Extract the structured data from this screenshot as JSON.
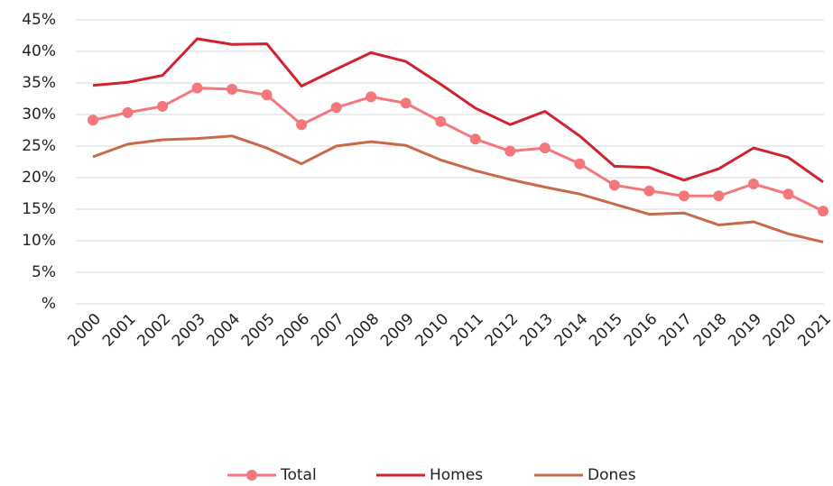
{
  "chart_data": {
    "type": "line",
    "categories": [
      "2000",
      "2001",
      "2002",
      "2003",
      "2004",
      "2005",
      "2006",
      "2007",
      "2008",
      "2009",
      "2010",
      "2011",
      "2012",
      "2013",
      "2014",
      "2015",
      "2016",
      "2017",
      "2018",
      "2019",
      "2020",
      "2021"
    ],
    "series": [
      {
        "name": "Total",
        "color": "#f4777c",
        "marker": "circle",
        "values": [
          29.1,
          30.3,
          31.3,
          34.2,
          34.0,
          33.1,
          28.4,
          31.1,
          32.8,
          31.8,
          28.9,
          26.1,
          24.2,
          24.7,
          22.2,
          18.8,
          17.9,
          17.1,
          17.1,
          19.0,
          17.4,
          14.7
        ]
      },
      {
        "name": "Homes",
        "color": "#d0222f",
        "values": [
          34.6,
          35.1,
          36.2,
          42.0,
          41.1,
          41.2,
          34.5,
          37.2,
          39.8,
          38.4,
          34.8,
          31.0,
          28.4,
          30.5,
          26.6,
          21.8,
          21.6,
          19.6,
          21.4,
          24.7,
          23.2,
          19.3
        ]
      },
      {
        "name": "Dones",
        "color": "#c8694a",
        "values": [
          23.3,
          25.3,
          26.0,
          26.2,
          26.6,
          24.7,
          22.2,
          25.0,
          25.7,
          25.1,
          22.8,
          21.1,
          19.7,
          18.5,
          17.4,
          15.8,
          14.2,
          14.4,
          12.5,
          13.0,
          11.1,
          9.8
        ]
      }
    ],
    "ylim": [
      0,
      45
    ],
    "yticks": [
      {
        "value": 0,
        "label": "%"
      },
      {
        "value": 5,
        "label": "5%"
      },
      {
        "value": 10,
        "label": "10%"
      },
      {
        "value": 15,
        "label": "15%"
      },
      {
        "value": 20,
        "label": "20%"
      },
      {
        "value": 25,
        "label": "25%"
      },
      {
        "value": 30,
        "label": "30%"
      },
      {
        "value": 35,
        "label": "35%"
      },
      {
        "value": 40,
        "label": "40%"
      },
      {
        "value": 45,
        "label": "45%"
      }
    ],
    "grid": true,
    "legend": "bottom"
  }
}
